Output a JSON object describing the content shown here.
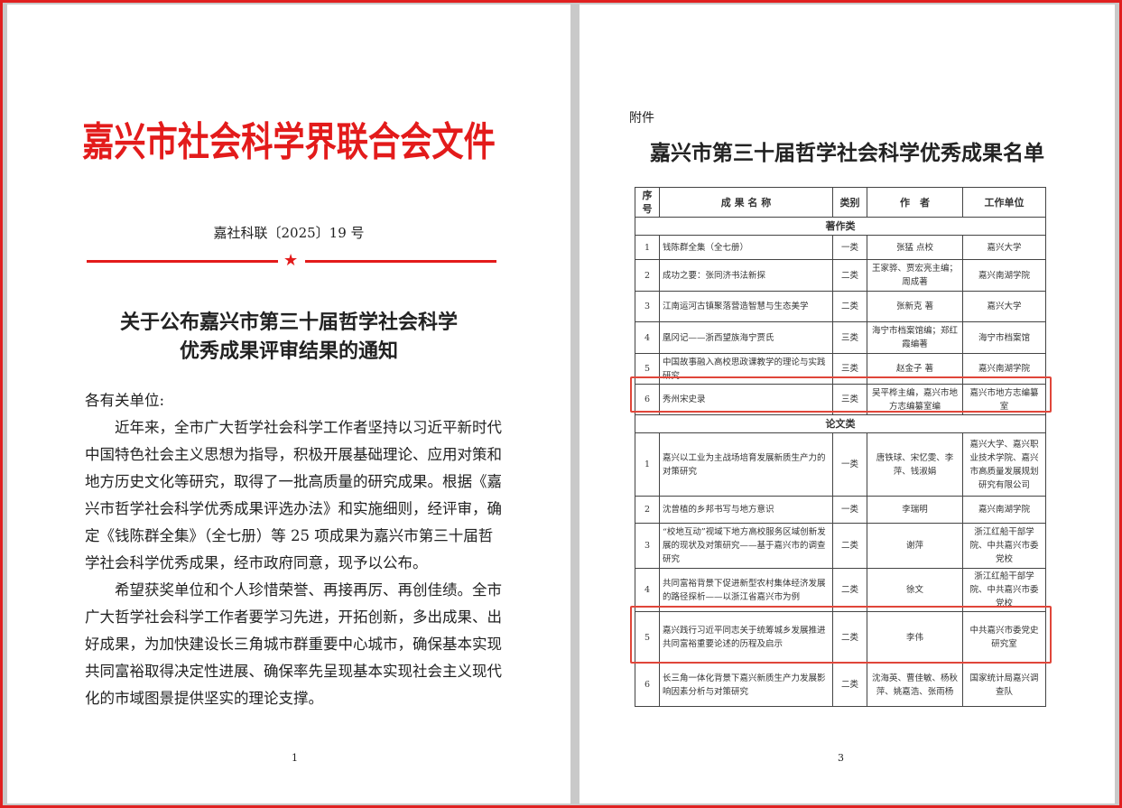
{
  "left_page": {
    "title": "嘉兴市社会科学界联合会文件",
    "doc_number": "嘉社科联〔2025〕19 号",
    "heading_lines": [
      "关于公布嘉兴市第三十届哲学社会科学",
      "优秀成果评审结果的通知"
    ],
    "salutation": "各有关单位:",
    "paragraph1": [
      "　　近年来，全市广大哲学社会科学工作者坚持以习近平新时代",
      "中国特色社会主义思想为指导，积极开展基础理论、应用对策和",
      "地方历史文化等研究，取得了一批高质量的研究成果。根据《嘉",
      "兴市哲学社会科学优秀成果评选办法》和实施细则，经评审，确",
      "定《钱陈群全集》（全七册）等 25 项成果为嘉兴市第三十届哲",
      "学社会科学优秀成果，经市政府同意，现予以公布。"
    ],
    "paragraph2": [
      "　　希望获奖单位和个人珍惜荣誉、再接再厉、再创佳绩。全市",
      "广大哲学社会科学工作者要学习先进，开拓创新，多出成果、出",
      "好成果，为加快建设长三角城市群重要中心城市，确保基本实现",
      "共同富裕取得决定性进展、确保率先呈现基本实现社会主义现代",
      "化的市域图景提供坚实的理论支撑。"
    ],
    "page_number": "1"
  },
  "right_page": {
    "attachment_label": "附件",
    "title": "嘉兴市第三十届哲学社会科学优秀成果名单",
    "columns": [
      "序号",
      "成 果 名 称",
      "类别",
      "作　者",
      "工作单位"
    ],
    "sections": [
      {
        "name": "著作类",
        "rows": [
          [
            "1",
            "钱陈群全集（全七册）",
            "一类",
            "张猛 点校",
            "嘉兴大学"
          ],
          [
            "2",
            "成功之要：张同济书法新探",
            "二类",
            "王家骅、贾宏亮主编；周成著",
            "嘉兴南湖学院"
          ],
          [
            "3",
            "江南运河古镇聚落营造智慧与生态美学",
            "二类",
            "张新克 著",
            "嘉兴大学"
          ],
          [
            "4",
            "凰冈记——浙西望族海宁贾氏",
            "三类",
            "海宁市档案馆编；郑红霞编著",
            "海宁市档案馆"
          ],
          [
            "5",
            "中国故事融入高校思政课教学的理论与实践研究",
            "三类",
            "赵金子 著",
            "嘉兴南湖学院"
          ],
          [
            "6",
            "秀州宋史录",
            "三类",
            "吴平桦主编，嘉兴市地方志编纂室编",
            "嘉兴市地方志编纂室"
          ]
        ]
      },
      {
        "name": "论文类",
        "rows": [
          [
            "1",
            "嘉兴以工业为主战场培育发展新质生产力的对策研究",
            "一类",
            "唐铁球、宋忆雯、李萍、钱淑娟",
            "嘉兴大学、嘉兴职业技术学院、嘉兴市高质量发展规划研究有限公司"
          ],
          [
            "2",
            "沈曾植的乡邦书写与地方意识",
            "一类",
            "李瑞明",
            "嘉兴南湖学院"
          ],
          [
            "3",
            "“校地互动”视域下地方高校服务区域创新发展的现状及对策研究——基于嘉兴市的调查研究",
            "二类",
            "谢萍",
            "浙江红船干部学院、中共嘉兴市委党校"
          ],
          [
            "4",
            "共同富裕背景下促进新型农村集体经济发展的路径探析——以浙江省嘉兴市为例",
            "二类",
            "徐文",
            "浙江红船干部学院、中共嘉兴市委党校"
          ],
          [
            "5",
            "嘉兴践行习近平同志关于统筹城乡发展推进共同富裕重要论述的历程及启示",
            "二类",
            "李伟",
            "中共嘉兴市委党史研究室"
          ],
          [
            "6",
            "长三角一体化背景下嘉兴新质生产力发展影响因素分析与对策研究",
            "二类",
            "沈海英、曹佳敏、杨秋萍、姚嘉浩、张雨杨",
            "国家统计局嘉兴调查队"
          ]
        ]
      }
    ],
    "highlight_color": "#e0463a",
    "page_number": "3"
  }
}
